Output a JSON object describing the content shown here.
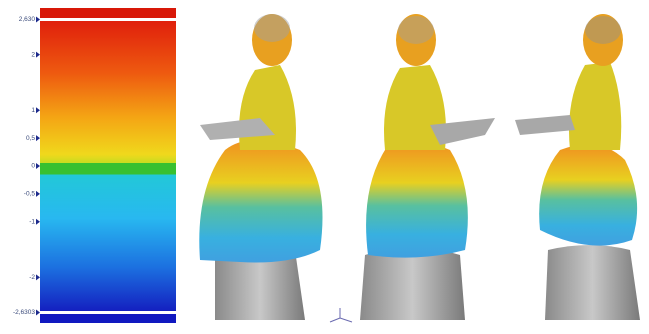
{
  "color_scale": {
    "ticks": [
      {
        "value": 2.63,
        "label": "2,630"
      },
      2,
      1,
      {
        "value": 0.5,
        "label": "0,5"
      },
      0,
      {
        "value": -0.5,
        "label": "-0,5"
      },
      -1,
      -2,
      {
        "value": -2.6303,
        "label": "-2,6303"
      }
    ]
  }
}
